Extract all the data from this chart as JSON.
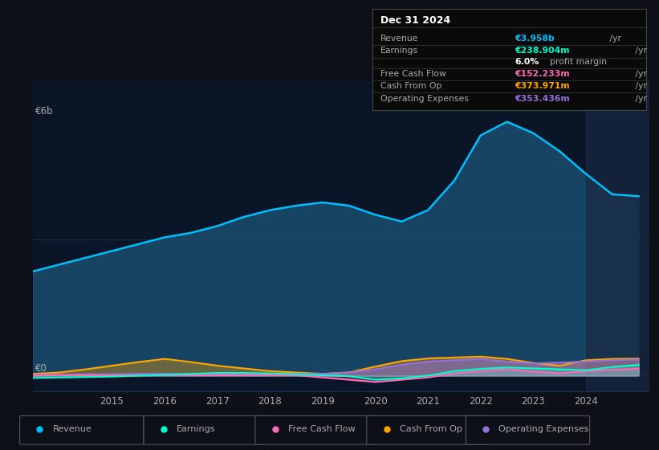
{
  "background_color": "#0d1117",
  "plot_bg_color": "#0a1628",
  "years": [
    2013.5,
    2014,
    2014.5,
    2015,
    2015.5,
    2016,
    2016.5,
    2017,
    2017.5,
    2018,
    2018.5,
    2019,
    2019.5,
    2020,
    2020.5,
    2021,
    2021.5,
    2022,
    2022.5,
    2023,
    2023.5,
    2024,
    2024.5,
    2025.0
  ],
  "revenue": [
    2.3,
    2.45,
    2.6,
    2.75,
    2.9,
    3.05,
    3.15,
    3.3,
    3.5,
    3.65,
    3.75,
    3.82,
    3.75,
    3.55,
    3.4,
    3.65,
    4.3,
    5.3,
    5.6,
    5.35,
    4.95,
    4.45,
    4.0,
    3.958
  ],
  "earnings": [
    -0.05,
    -0.04,
    -0.03,
    -0.02,
    0.0,
    0.02,
    0.04,
    0.06,
    0.06,
    0.05,
    0.03,
    0.01,
    -0.01,
    -0.09,
    -0.06,
    0.0,
    0.1,
    0.15,
    0.18,
    0.16,
    0.14,
    0.12,
    0.19,
    0.238
  ],
  "free_cash_flow": [
    0.0,
    0.01,
    0.01,
    0.01,
    0.01,
    0.01,
    0.01,
    0.01,
    0.01,
    0.01,
    0.01,
    -0.04,
    -0.09,
    -0.14,
    -0.09,
    -0.04,
    0.05,
    0.1,
    0.14,
    0.09,
    0.05,
    0.1,
    0.13,
    0.152
  ],
  "cash_from_op": [
    0.04,
    0.07,
    0.14,
    0.22,
    0.3,
    0.37,
    0.3,
    0.22,
    0.16,
    0.1,
    0.07,
    0.04,
    0.07,
    0.2,
    0.32,
    0.38,
    0.4,
    0.42,
    0.37,
    0.28,
    0.22,
    0.34,
    0.37,
    0.374
  ],
  "operating_expenses": [
    0.02,
    0.02,
    0.03,
    0.03,
    0.04,
    0.04,
    0.04,
    0.04,
    0.04,
    0.04,
    0.04,
    0.04,
    0.07,
    0.14,
    0.24,
    0.31,
    0.34,
    0.37,
    0.31,
    0.27,
    0.29,
    0.31,
    0.34,
    0.353
  ],
  "revenue_color": "#00bfff",
  "earnings_color": "#00ffcc",
  "free_cash_flow_color": "#ff69b4",
  "cash_from_op_color": "#ffa500",
  "operating_expenses_color": "#9370db",
  "revenue_fill_color": "#1a4a6b",
  "ylabel_text": "€6b",
  "y0_text": "€0",
  "info_box": {
    "title": "Dec 31 2024",
    "revenue_label": "Revenue",
    "revenue_value": "€3.958b",
    "earnings_label": "Earnings",
    "earnings_value": "€238.904m",
    "margin_pct": "6.0%",
    "margin_text": "profit margin",
    "fcf_label": "Free Cash Flow",
    "fcf_value": "€152.233m",
    "cop_label": "Cash From Op",
    "cop_value": "€373.971m",
    "opex_label": "Operating Expenses",
    "opex_value": "€353.436m"
  },
  "legend": [
    {
      "label": "Revenue",
      "color": "#00bfff"
    },
    {
      "label": "Earnings",
      "color": "#00ffcc"
    },
    {
      "label": "Free Cash Flow",
      "color": "#ff69b4"
    },
    {
      "label": "Cash From Op",
      "color": "#ffa500"
    },
    {
      "label": "Operating Expenses",
      "color": "#9370db"
    }
  ],
  "xlim": [
    2013.5,
    2025.2
  ],
  "ylim": [
    -0.35,
    6.5
  ],
  "xtick_years": [
    2015,
    2016,
    2017,
    2018,
    2019,
    2020,
    2021,
    2022,
    2023,
    2024
  ],
  "grid_color": "#1e3050",
  "text_color": "#aaaaaa",
  "highlight_x_start": 2024.0,
  "highlight_x_end": 2025.3
}
